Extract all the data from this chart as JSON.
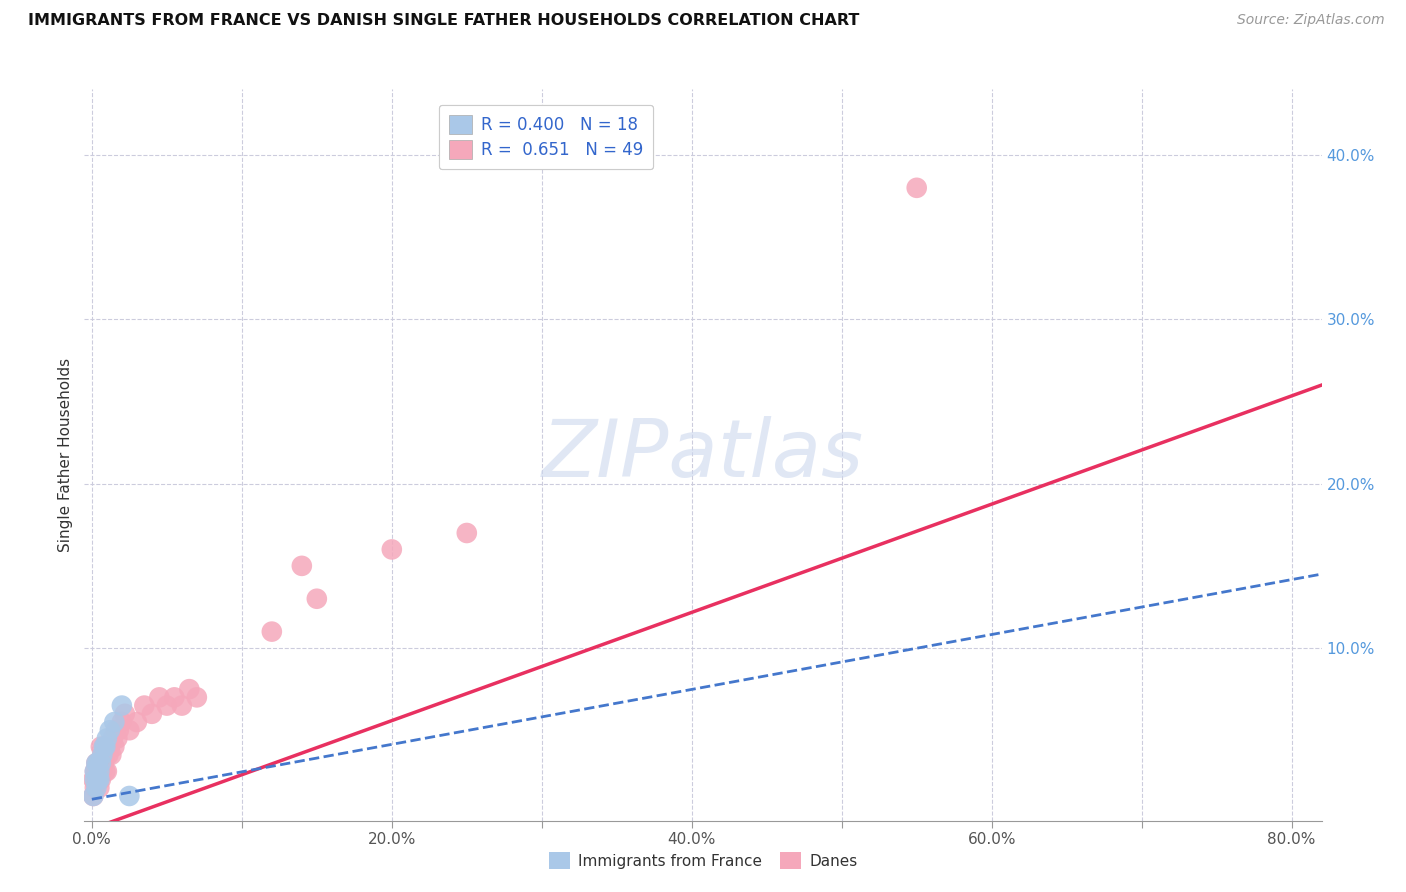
{
  "title": "IMMIGRANTS FROM FRANCE VS DANISH SINGLE FATHER HOUSEHOLDS CORRELATION CHART",
  "source": "Source: ZipAtlas.com",
  "ylabel": "Single Father Households",
  "xlim": [
    -0.005,
    0.82
  ],
  "ylim": [
    -0.005,
    0.44
  ],
  "legend_R_blue": "0.400",
  "legend_N_blue": "18",
  "legend_R_pink": "0.651",
  "legend_N_pink": "49",
  "blue_color": "#aac8e8",
  "pink_color": "#f5a8bb",
  "blue_line_color": "#4477cc",
  "pink_line_color": "#e83060",
  "blue_scatter_x": [
    0.001,
    0.002,
    0.002,
    0.003,
    0.003,
    0.004,
    0.004,
    0.005,
    0.005,
    0.006,
    0.007,
    0.008,
    0.009,
    0.01,
    0.012,
    0.015,
    0.02,
    0.025
  ],
  "blue_scatter_y": [
    0.01,
    0.02,
    0.025,
    0.015,
    0.03,
    0.02,
    0.03,
    0.025,
    0.02,
    0.03,
    0.035,
    0.04,
    0.04,
    0.045,
    0.05,
    0.055,
    0.065,
    0.01
  ],
  "pink_scatter_x": [
    0.001,
    0.001,
    0.002,
    0.002,
    0.003,
    0.003,
    0.003,
    0.004,
    0.004,
    0.005,
    0.005,
    0.005,
    0.006,
    0.006,
    0.006,
    0.007,
    0.007,
    0.008,
    0.008,
    0.009,
    0.009,
    0.01,
    0.01,
    0.011,
    0.012,
    0.013,
    0.014,
    0.015,
    0.016,
    0.017,
    0.018,
    0.02,
    0.022,
    0.025,
    0.03,
    0.035,
    0.04,
    0.045,
    0.05,
    0.055,
    0.06,
    0.065,
    0.07,
    0.12,
    0.14,
    0.15,
    0.2,
    0.25,
    0.55
  ],
  "pink_scatter_y": [
    0.01,
    0.02,
    0.015,
    0.025,
    0.02,
    0.025,
    0.03,
    0.02,
    0.03,
    0.015,
    0.025,
    0.03,
    0.02,
    0.03,
    0.04,
    0.025,
    0.035,
    0.03,
    0.04,
    0.025,
    0.035,
    0.025,
    0.04,
    0.035,
    0.04,
    0.035,
    0.045,
    0.04,
    0.05,
    0.045,
    0.05,
    0.055,
    0.06,
    0.05,
    0.055,
    0.065,
    0.06,
    0.07,
    0.065,
    0.07,
    0.065,
    0.075,
    0.07,
    0.11,
    0.15,
    0.13,
    0.16,
    0.17,
    0.38
  ],
  "pink_line_x0": 0.0,
  "pink_line_y0": -0.01,
  "pink_line_x1": 0.82,
  "pink_line_y1": 0.26,
  "blue_line_x0": 0.0,
  "blue_line_y0": 0.008,
  "blue_line_x1": 0.82,
  "blue_line_y1": 0.145
}
